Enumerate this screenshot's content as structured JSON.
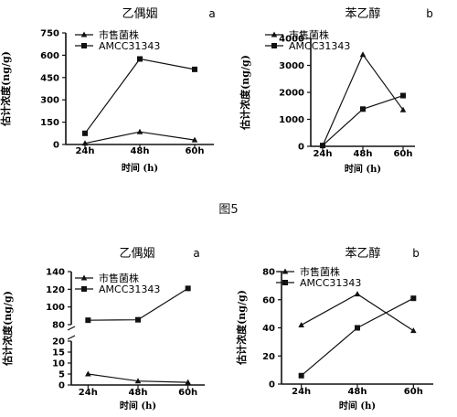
{
  "figure_caption": "图5",
  "chart_data": [
    {
      "type": "line",
      "title": "乙偶姻",
      "panel_letter": "a",
      "xlabel": "时间 (h)",
      "ylabel": "估计浓度(ng/g)",
      "categories": [
        "24h",
        "48h",
        "60h"
      ],
      "ylim": [
        0,
        750
      ],
      "yticks": [
        "0",
        "150",
        "300",
        "450",
        "600",
        "750"
      ],
      "series": [
        {
          "name": "市售菌株",
          "marker": "triangle",
          "values": [
            8,
            85,
            30
          ]
        },
        {
          "name": "AMCC31343",
          "marker": "square",
          "values": [
            75,
            575,
            505
          ]
        }
      ]
    },
    {
      "type": "line",
      "title": "苯乙醇",
      "panel_letter": "b",
      "xlabel": "时间 (h)",
      "ylabel": "估计浓度(ng/g)",
      "categories": [
        "24h",
        "48h",
        "60h"
      ],
      "ylim": [
        0,
        4000
      ],
      "yticks": [
        "0",
        "1000",
        "2000",
        "3000",
        "4000"
      ],
      "series": [
        {
          "name": "市售菌株",
          "marker": "triangle",
          "values": [
            20,
            3400,
            1350
          ]
        },
        {
          "name": "AMCC31343",
          "marker": "square",
          "values": [
            30,
            1380,
            1880
          ]
        }
      ]
    },
    {
      "type": "line",
      "title": "乙偶姻",
      "panel_letter": "a",
      "xlabel": "时间 (h)",
      "ylabel": "估计浓度(ng/g)",
      "categories": [
        "24h",
        "48h",
        "60h"
      ],
      "broken_axis": true,
      "ylim_lower": [
        0,
        20
      ],
      "ylim_upper": [
        80,
        140
      ],
      "yticks_lower": [
        "0",
        "5",
        "10",
        "15",
        "20"
      ],
      "yticks_upper": [
        "80",
        "100",
        "120",
        "140"
      ],
      "series": [
        {
          "name": "市售菌株",
          "marker": "triangle",
          "values": [
            5,
            1.8,
            1.2
          ]
        },
        {
          "name": "AMCC31343",
          "marker": "square",
          "values": [
            85,
            85.5,
            121
          ]
        }
      ]
    },
    {
      "type": "line",
      "title": "苯乙醇",
      "panel_letter": "b",
      "xlabel": "时间 (h)",
      "ylabel": "估计浓度(ng/g)",
      "categories": [
        "24h",
        "48h",
        "60h"
      ],
      "ylim": [
        0,
        80
      ],
      "yticks": [
        "0",
        "20",
        "40",
        "60",
        "80"
      ],
      "series": [
        {
          "name": "市售菌株",
          "marker": "triangle",
          "values": [
            42,
            64,
            38
          ]
        },
        {
          "name": "AMCC31343",
          "marker": "square",
          "values": [
            6,
            40,
            61
          ]
        }
      ]
    }
  ]
}
